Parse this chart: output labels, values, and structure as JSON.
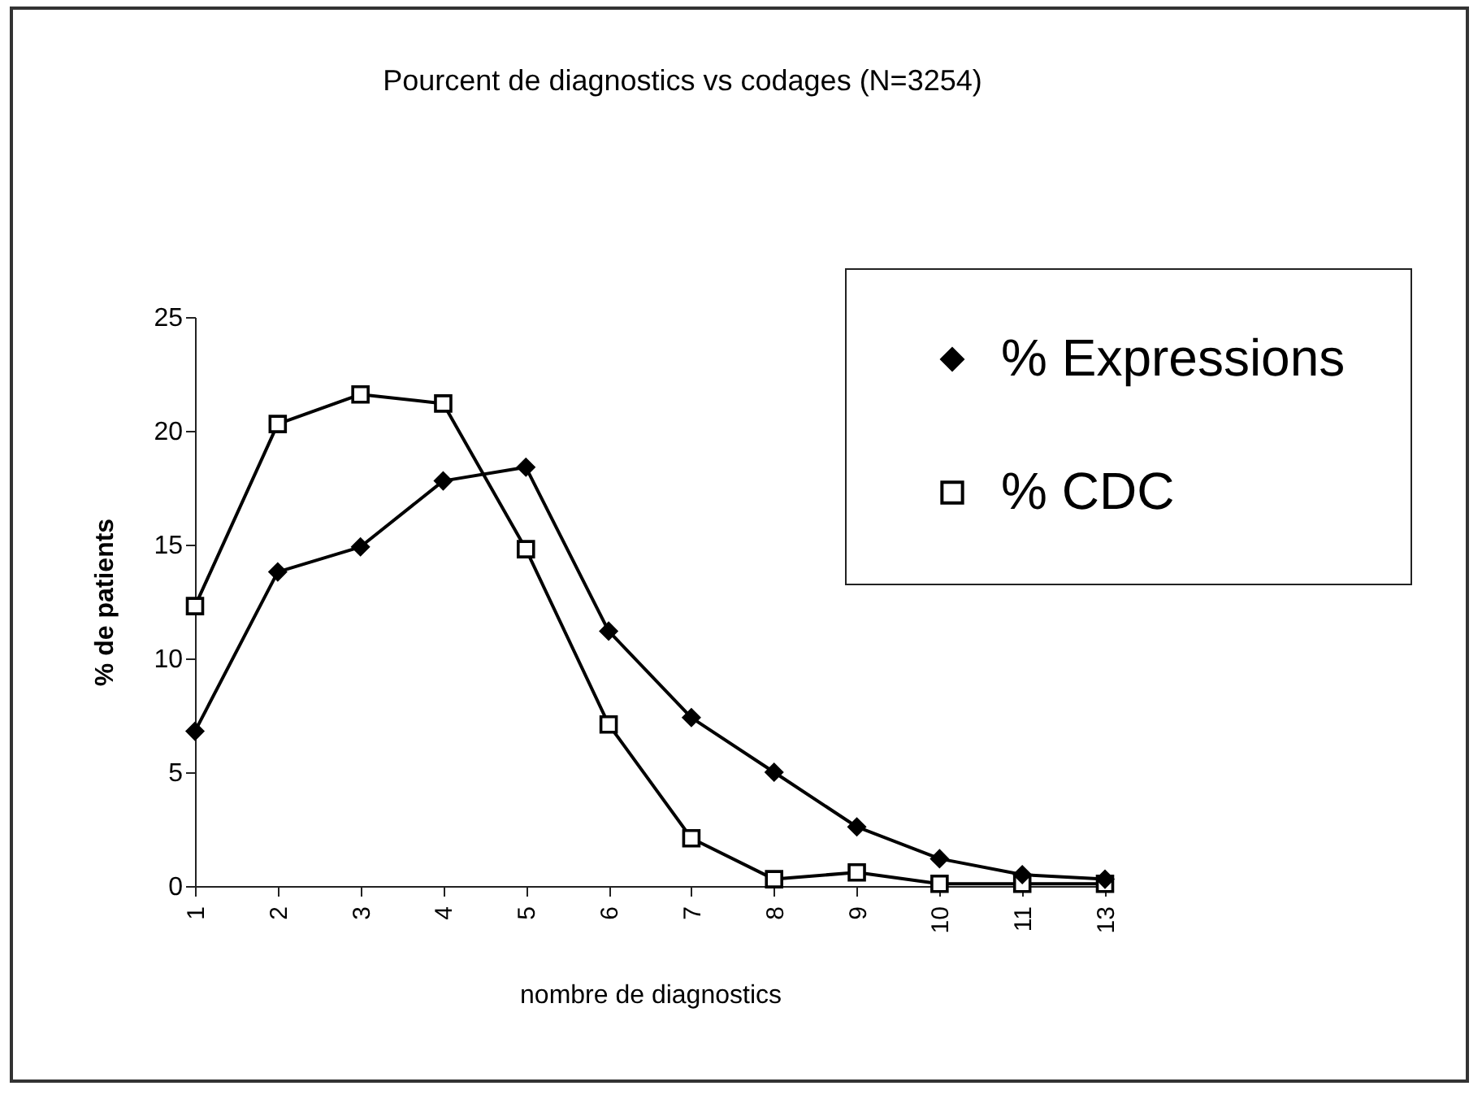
{
  "chart_data": {
    "type": "line",
    "title": "Pourcent de diagnostics vs codages (N=3254)",
    "xlabel": "nombre de diagnostics",
    "ylabel": "% de patients",
    "categories": [
      "1",
      "2",
      "3",
      "4",
      "5",
      "6",
      "7",
      "8",
      "9",
      "10",
      "11",
      "13"
    ],
    "series": [
      {
        "name": "% Expressions",
        "color": "#000000",
        "marker": "diamond",
        "values": [
          6.8,
          13.8,
          14.9,
          17.8,
          18.4,
          11.2,
          7.4,
          5.0,
          2.6,
          1.2,
          0.5,
          0.3
        ]
      },
      {
        "name": "% CDC",
        "color": "#000000",
        "marker": "square",
        "values": [
          12.3,
          20.3,
          21.6,
          21.2,
          14.8,
          7.1,
          2.1,
          0.3,
          0.6,
          0.1,
          0.1,
          0.1
        ]
      }
    ],
    "ylim": [
      0,
      25
    ],
    "yticks": [
      0,
      5,
      10,
      15,
      20,
      25
    ],
    "grid": false,
    "legend": "top right",
    "line_style": "solid"
  }
}
